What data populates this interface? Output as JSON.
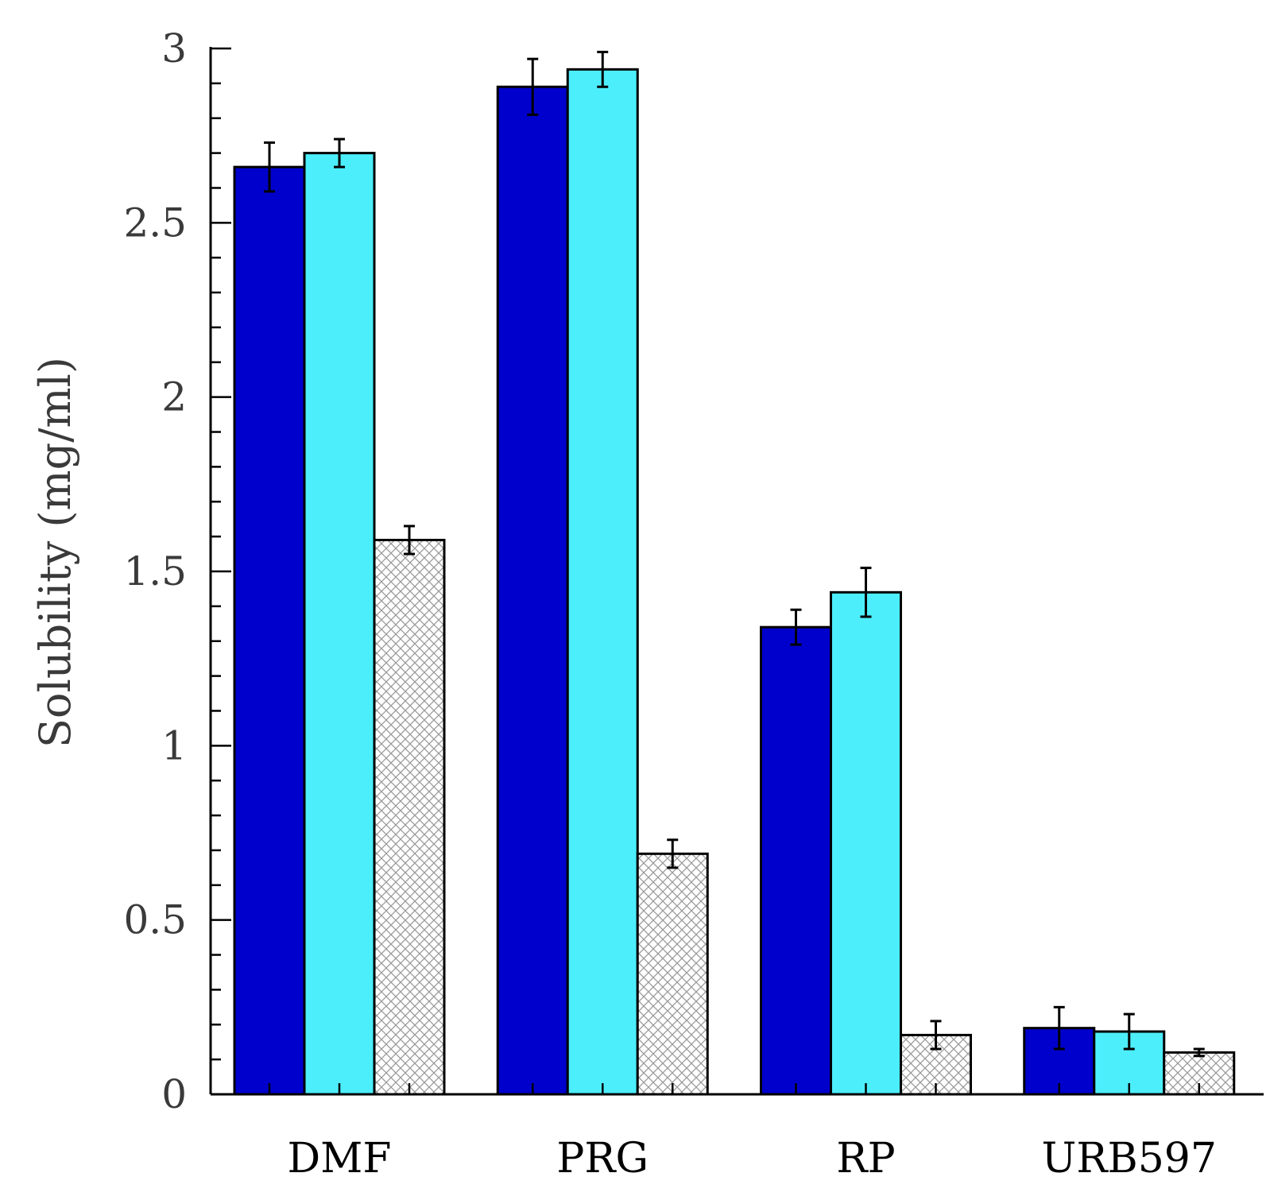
{
  "chart_data": {
    "type": "bar",
    "categories": [
      "DMF",
      "PRG",
      "RP",
      "URB597"
    ],
    "series": [
      {
        "values": [
          2.66,
          2.89,
          1.34,
          0.19
        ],
        "errors": [
          0.07,
          0.08,
          0.05,
          0.06
        ],
        "color": "#0000CC",
        "pattern": "solid"
      },
      {
        "values": [
          2.7,
          2.94,
          1.44,
          0.18
        ],
        "errors": [
          0.04,
          0.05,
          0.07,
          0.05
        ],
        "color": "#4DEEFC",
        "pattern": "solid"
      },
      {
        "values": [
          1.59,
          0.69,
          0.17,
          0.12
        ],
        "errors": [
          0.04,
          0.04,
          0.04,
          0.01
        ],
        "color": "#ffffff",
        "pattern": "crosshatch"
      }
    ],
    "ylabel": "Solubility (mg/ml)",
    "xlabel": "",
    "ylim": [
      0,
      3
    ],
    "yticks": [
      "0",
      "0.5",
      "1",
      "1.5",
      "2",
      "2.5",
      "3"
    ],
    "grid": false,
    "legend": "none"
  }
}
